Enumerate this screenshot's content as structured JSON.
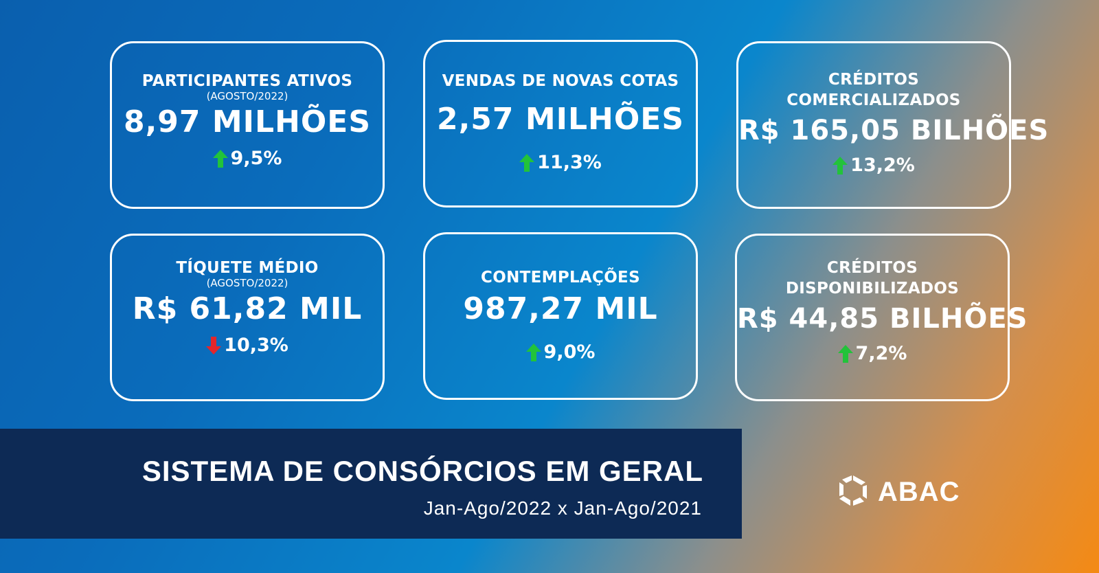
{
  "cards": [
    {
      "title": "PARTICIPANTES ATIVOS",
      "sub": "(AGOSTO/2022)",
      "value": "8,97 MILHÕES",
      "change": "9,5%",
      "direction": "up"
    },
    {
      "title": "VENDAS DE NOVAS COTAS",
      "sub": "",
      "value": "2,57 MILHÕES",
      "change": "11,3%",
      "direction": "up"
    },
    {
      "title": "CRÉDITOS",
      "title2": "COMERCIALIZADOS",
      "value": "R$ 165,05 BILHÕES",
      "change": "13,2%",
      "direction": "up"
    },
    {
      "title": "TÍQUETE MÉDIO",
      "sub": "(AGOSTO/2022)",
      "value": "R$ 61,82 MIL",
      "change": "10,3%",
      "direction": "down"
    },
    {
      "title": "CONTEMPLAÇÕES",
      "value": "987,27 MIL",
      "change": "9,0%",
      "direction": "up"
    },
    {
      "title": "CRÉDITOS",
      "title2": "DISPONIBILIZADOS",
      "value": "R$ 44,85 BILHÕES",
      "change": "7,2%",
      "direction": "up"
    }
  ],
  "banner": {
    "title": "SISTEMA DE CONSÓRCIOS EM GERAL",
    "period": "Jan-Ago/2022 x Jan-Ago/2021"
  },
  "logo": {
    "text": "ABAC"
  },
  "colors": {
    "up": "#22c33a",
    "down": "#e3262b",
    "banner": "#0d2a55"
  }
}
